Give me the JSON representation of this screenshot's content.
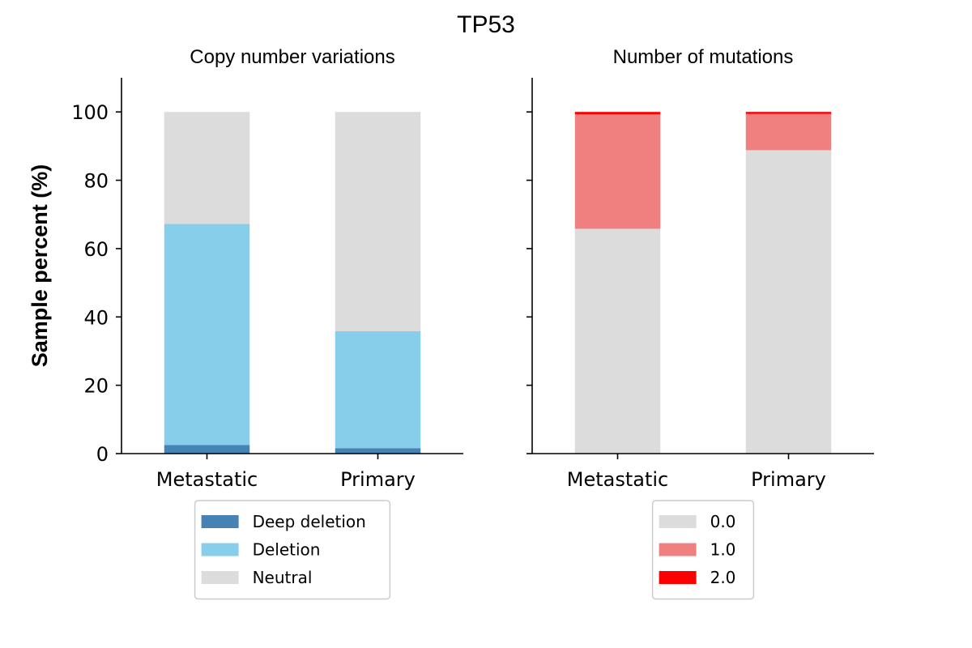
{
  "figure_title": "TP53",
  "ylabel": "Sample percent (%)",
  "chart_data": [
    {
      "type": "bar",
      "stacked": true,
      "title": "Copy number variations",
      "xlabel": "",
      "ylabel": "Sample percent (%)",
      "categories": [
        "Metastatic",
        "Primary"
      ],
      "ylim": [
        0,
        110
      ],
      "yticks": [
        0,
        20,
        40,
        60,
        80,
        100
      ],
      "grid": false,
      "legend_position": "below",
      "series": [
        {
          "name": "Deep deletion",
          "color": "#4682b4",
          "values": [
            2.5,
            1.6
          ]
        },
        {
          "name": "Deletion",
          "color": "#87ceeb",
          "values": [
            64.7,
            34.2
          ]
        },
        {
          "name": "Neutral",
          "color": "#dcdcdc",
          "values": [
            32.8,
            64.2
          ]
        }
      ]
    },
    {
      "type": "bar",
      "stacked": true,
      "title": "Number of mutations",
      "xlabel": "",
      "ylabel": "",
      "categories": [
        "Metastatic",
        "Primary"
      ],
      "ylim": [
        0,
        110
      ],
      "yticks": [
        0,
        20,
        40,
        60,
        80,
        100
      ],
      "show_tick_labels_y": false,
      "grid": false,
      "legend_position": "below",
      "series": [
        {
          "name": "0.0",
          "color": "#dcdcdc",
          "values": [
            65.8,
            88.8
          ]
        },
        {
          "name": "1.0",
          "color": "#f08080",
          "values": [
            33.5,
            10.6
          ]
        },
        {
          "name": "2.0",
          "color": "#ff0000",
          "values": [
            0.7,
            0.6
          ]
        }
      ]
    }
  ]
}
